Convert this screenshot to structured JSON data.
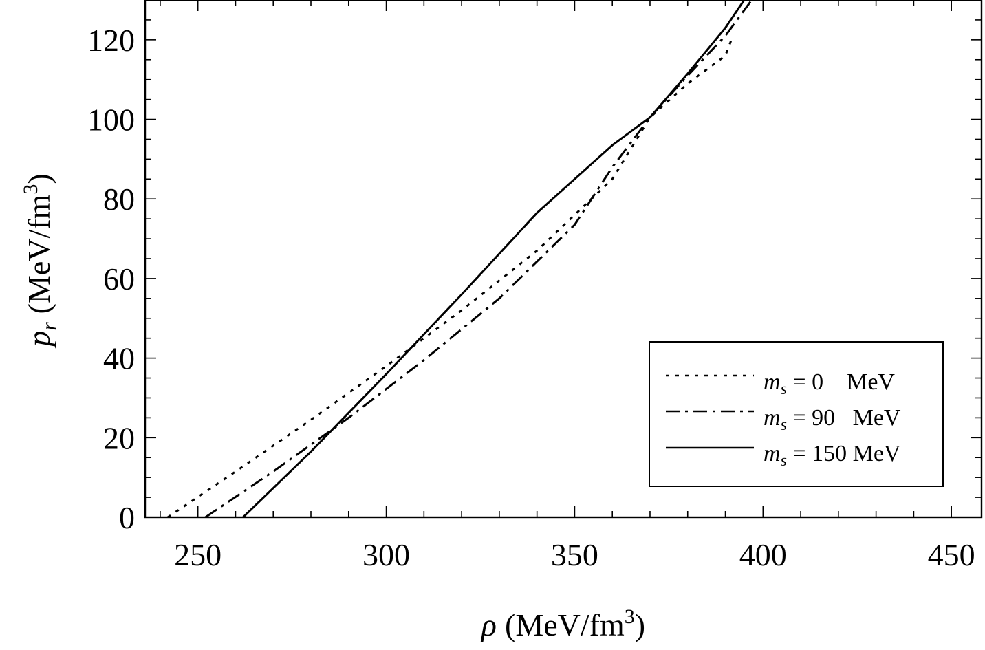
{
  "chart_data": {
    "type": "line",
    "xlabel": {
      "symbol": "ρ",
      "unit_prefix": "(MeV/fm",
      "unit_sup": "3",
      "unit_suffix": ")"
    },
    "ylabel": {
      "symbol": "p",
      "subscript": "r",
      "unit_prefix": "(MeV/fm",
      "unit_sup": "3",
      "unit_suffix": ")"
    },
    "xlim": [
      236,
      458
    ],
    "ylim": [
      0,
      130
    ],
    "xticks": [
      250,
      300,
      350,
      400,
      450
    ],
    "yticks": [
      0,
      20,
      40,
      60,
      80,
      100,
      120
    ],
    "grid": false,
    "legend": {
      "placement": "bottom-right",
      "entries": [
        {
          "symbol": "m",
          "subscript": "s",
          "text": " = 0    MeV"
        },
        {
          "symbol": "m",
          "subscript": "s",
          "text": " = 90   MeV"
        },
        {
          "symbol": "m",
          "subscript": "s",
          "text": " = 150 MeV"
        }
      ]
    },
    "series": [
      {
        "style": "dotted",
        "x": [
          242,
          260,
          280,
          300,
          320,
          340,
          360,
          370,
          380,
          390,
          392
        ],
        "y": [
          0,
          11.5,
          24.5,
          38,
          52,
          67,
          85,
          100.5,
          109,
          116,
          121
        ]
      },
      {
        "style": "dashdot",
        "x": [
          252,
          270,
          290,
          310,
          330,
          350,
          360,
          370,
          380,
          390,
          397
        ],
        "y": [
          0,
          11.5,
          25,
          39.5,
          55,
          73.5,
          88,
          100.5,
          111,
          121,
          130
        ]
      },
      {
        "style": "solid",
        "x": [
          262,
          280,
          300,
          320,
          340,
          360,
          370,
          380,
          390,
          395
        ],
        "y": [
          0,
          16.5,
          36,
          56,
          76.5,
          93.5,
          100.5,
          111.5,
          123,
          130
        ]
      }
    ]
  }
}
